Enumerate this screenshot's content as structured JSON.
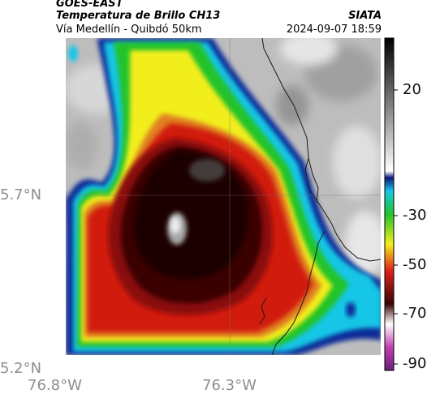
{
  "header": {
    "satellite": "GOES-EAST",
    "product": "Temperatura de Brillo CH13",
    "region": "Vía Medellín - Quibdó 50km",
    "source": "SIATA",
    "datetime": "2024-09-07 18:59"
  },
  "map": {
    "lat_ticks": [
      "5.7°N",
      "5.2°N"
    ],
    "lon_ticks": [
      "76.8°W",
      "76.3°W"
    ],
    "gridlines": true
  },
  "colorbar": {
    "tick_labels": [
      "20",
      "-30",
      "-50",
      "-70",
      "-90"
    ]
  },
  "colors": {
    "warm_clear": "#bdbdbd",
    "cold_core": "#1a0606",
    "red": "#d11a0c",
    "yellow": "#f2ee1c",
    "green": "#22c32a",
    "cyan": "#18c6e6",
    "blue": "#0a2a98",
    "magenta": "#c040b0"
  }
}
